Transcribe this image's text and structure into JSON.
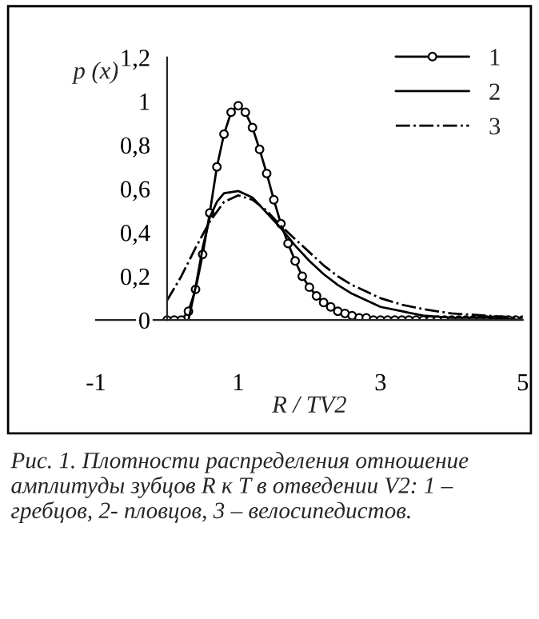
{
  "chart_data": {
    "type": "line",
    "xlabel": "R / TV2",
    "ylabel": "p (x)",
    "xlim": [
      -1,
      5
    ],
    "xticks": [
      -1,
      1,
      3,
      5
    ],
    "ylim": [
      0,
      1.2
    ],
    "yticks": [
      0,
      {
        "value": 0.2,
        "label": "0,2"
      },
      {
        "value": 0.4,
        "label": "0,4"
      },
      {
        "value": 0.6,
        "label": "0,6"
      },
      {
        "value": 0.8,
        "label": "0,8"
      },
      1,
      {
        "value": 1.2,
        "label": "1,2"
      }
    ],
    "grid": false,
    "legend": "top right",
    "series": [
      {
        "name": "1",
        "color": "#000000",
        "marker": "circle",
        "line_style": "solid",
        "x": [
          0,
          0.1,
          0.2,
          0.3,
          0.4,
          0.5,
          0.6,
          0.7,
          0.8,
          0.9,
          1.0,
          1.1,
          1.2,
          1.3,
          1.4,
          1.5,
          1.6,
          1.7,
          1.8,
          1.9,
          2.0,
          2.1,
          2.2,
          2.3,
          2.4,
          2.5,
          2.6,
          2.7,
          2.8,
          2.9,
          3.0,
          3.1,
          3.2,
          3.3,
          3.4,
          3.5,
          3.6,
          3.7,
          3.8,
          3.9,
          4.0,
          4.1,
          4.2,
          4.3,
          4.4,
          4.5,
          4.6,
          4.7,
          4.8,
          4.9,
          5.0
        ],
        "values": [
          0,
          0,
          0,
          0.04,
          0.14,
          0.3,
          0.49,
          0.7,
          0.85,
          0.95,
          0.98,
          0.95,
          0.88,
          0.78,
          0.67,
          0.55,
          0.44,
          0.35,
          0.27,
          0.2,
          0.15,
          0.11,
          0.08,
          0.06,
          0.04,
          0.03,
          0.02,
          0.01,
          0.01,
          0,
          0,
          0,
          0,
          0,
          0,
          0,
          0,
          0,
          0,
          0,
          0,
          0,
          0,
          0,
          0,
          0,
          0,
          0,
          0,
          0,
          0
        ]
      },
      {
        "name": "2",
        "color": "#000000",
        "marker": "none",
        "line_style": "solid",
        "x": [
          0.3,
          0.4,
          0.5,
          0.6,
          0.7,
          0.8,
          1.0,
          1.2,
          1.4,
          1.6,
          1.8,
          2.0,
          2.2,
          2.4,
          2.6,
          2.8,
          3.0,
          3.3,
          3.6,
          4.0,
          4.5,
          5.0
        ],
        "values": [
          0,
          0.15,
          0.33,
          0.47,
          0.54,
          0.58,
          0.59,
          0.56,
          0.49,
          0.42,
          0.34,
          0.27,
          0.21,
          0.16,
          0.12,
          0.09,
          0.06,
          0.04,
          0.02,
          0.01,
          0.01,
          0
        ]
      },
      {
        "name": "3",
        "color": "#000000",
        "marker": "none",
        "line_style": "dashdot",
        "x": [
          0,
          0.2,
          0.4,
          0.6,
          0.8,
          1.0,
          1.2,
          1.4,
          1.6,
          1.8,
          2.0,
          2.2,
          2.4,
          2.6,
          2.8,
          3.0,
          3.3,
          3.6,
          4.0,
          4.5,
          5.0
        ],
        "values": [
          0.09,
          0.2,
          0.33,
          0.45,
          0.54,
          0.57,
          0.55,
          0.5,
          0.43,
          0.37,
          0.31,
          0.25,
          0.2,
          0.16,
          0.13,
          0.1,
          0.07,
          0.05,
          0.03,
          0.02,
          0.01
        ]
      }
    ],
    "annotations": [
      "Рис. 1. Плотности распределения отношение амплитуды зубцов R к T в отведении V2: 1 – гребцов, 2- пловцов, 3 – велосипедистов."
    ]
  }
}
